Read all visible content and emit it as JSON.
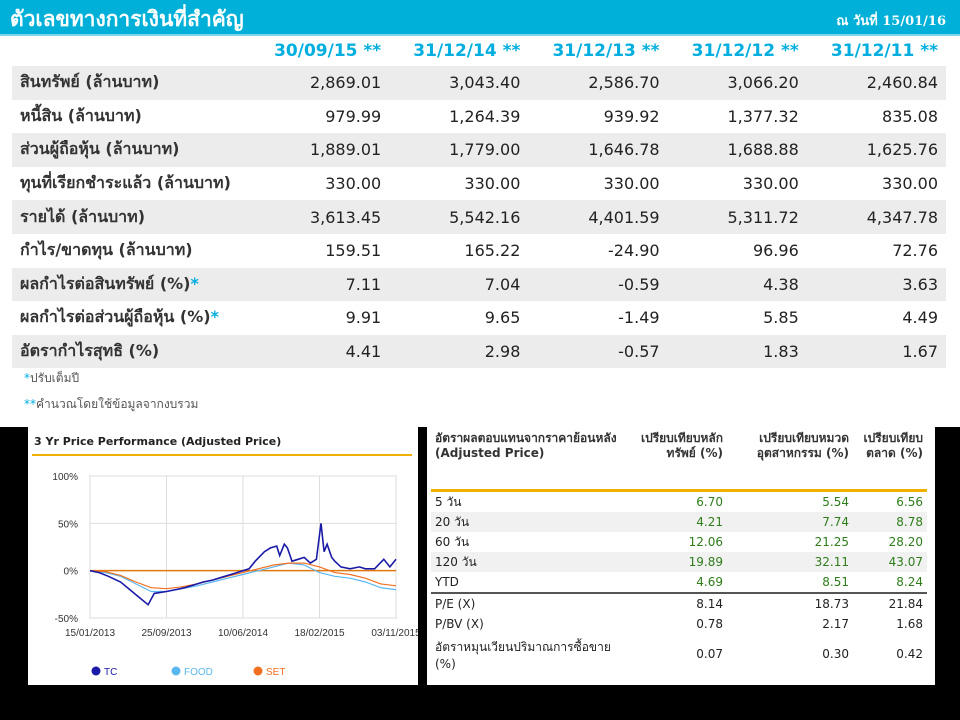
{
  "header": {
    "title": "ตัวเลขทางการเงินที่สำคัญ",
    "date": "ณ วันที่ 15/01/16"
  },
  "financials": {
    "columns": [
      "30/09/15 **",
      "31/12/14 **",
      "31/12/13 **",
      "31/12/12 **",
      "31/12/11 **"
    ],
    "rows": [
      {
        "label": "สินทรัพย์ (ล้านบาท)",
        "star": "",
        "values": [
          "2,869.01",
          "3,043.40",
          "2,586.70",
          "3,066.20",
          "2,460.84"
        ]
      },
      {
        "label": "หนี้สิน (ล้านบาท)",
        "star": "",
        "values": [
          "979.99",
          "1,264.39",
          "939.92",
          "1,377.32",
          "835.08"
        ]
      },
      {
        "label": "ส่วนผู้ถือหุ้น (ล้านบาท)",
        "star": "",
        "values": [
          "1,889.01",
          "1,779.00",
          "1,646.78",
          "1,688.88",
          "1,625.76"
        ]
      },
      {
        "label": "ทุนที่เรียกชำระแล้ว (ล้านบาท)",
        "star": "",
        "values": [
          "330.00",
          "330.00",
          "330.00",
          "330.00",
          "330.00"
        ]
      },
      {
        "label": "รายได้ (ล้านบาท)",
        "star": "",
        "values": [
          "3,613.45",
          "5,542.16",
          "4,401.59",
          "5,311.72",
          "4,347.78"
        ]
      },
      {
        "label": "กำไร/ขาดทุน (ล้านบาท)",
        "star": "",
        "values": [
          "159.51",
          "165.22",
          "-24.90",
          "96.96",
          "72.76"
        ]
      },
      {
        "label": "ผลกำไรต่อสินทรัพย์ (%)",
        "star": "*",
        "values": [
          "7.11",
          "7.04",
          "-0.59",
          "4.38",
          "3.63"
        ]
      },
      {
        "label": "ผลกำไรต่อส่วนผู้ถือหุ้น (%)",
        "star": "*",
        "values": [
          "9.91",
          "9.65",
          "-1.49",
          "5.85",
          "4.49"
        ]
      },
      {
        "label": "อัตรากำไรสุทธิ (%)",
        "star": "",
        "values": [
          "4.41",
          "2.98",
          "-0.57",
          "1.83",
          "1.67"
        ]
      }
    ],
    "notes": [
      {
        "mark": "*",
        "text": "ปรับเต็มปี"
      },
      {
        "mark": "**",
        "text": "คำนวณโดยใช้ข้อมูลจากงบรวม"
      }
    ]
  },
  "returns": {
    "headers": [
      "อัตราผลตอบแทนจากราคาย้อนหลัง (Adjusted Price)",
      "เปรียบเทียบหลักทรัพย์ (%)",
      "เปรียบเทียบหมวดอุตสาหกรรม (%)",
      "เปรียบเทียบตลาด (%)"
    ],
    "rows": [
      {
        "label": "5 วัน",
        "values": [
          "6.70",
          "5.54",
          "6.56"
        ]
      },
      {
        "label": "20 วัน",
        "values": [
          "4.21",
          "7.74",
          "8.78"
        ]
      },
      {
        "label": "60 วัน",
        "values": [
          "12.06",
          "21.25",
          "28.20"
        ]
      },
      {
        "label": "120 วัน",
        "values": [
          "19.89",
          "32.11",
          "43.07"
        ]
      },
      {
        "label": "YTD",
        "values": [
          "4.69",
          "8.51",
          "8.24"
        ]
      }
    ],
    "ratios": [
      {
        "label": "P/E (X)",
        "values": [
          "8.14",
          "18.73",
          "21.84"
        ]
      },
      {
        "label": "P/BV (X)",
        "values": [
          "0.78",
          "2.17",
          "1.68"
        ]
      },
      {
        "label": "อัตราหมุนเวียนปริมาณการซื้อขาย (%)",
        "values": [
          "0.07",
          "0.30",
          "0.42"
        ]
      }
    ]
  },
  "chart_data": {
    "type": "line",
    "title": "3 Yr Price Performance (Adjusted Price)",
    "ylim": [
      -50,
      100
    ],
    "yticks": [
      "100%",
      "50%",
      "0%",
      "-50%"
    ],
    "ytick_values": [
      100,
      50,
      0,
      -50
    ],
    "x_ticks": [
      "15/01/2013",
      "25/09/2013",
      "10/06/2014",
      "18/02/2015",
      "03/11/2015"
    ],
    "x_tick_positions": [
      0,
      0.25,
      0.5,
      0.75,
      1.0
    ],
    "baseline": 0,
    "colors": {
      "TC": "#1a1aa8",
      "FOOD": "#5ab8f0",
      "SET": "#f07020",
      "baseline": "#e07a10"
    },
    "series": [
      {
        "name": "TC",
        "x": [
          0,
          0.03,
          0.06,
          0.1,
          0.13,
          0.16,
          0.19,
          0.21,
          0.23,
          0.25,
          0.28,
          0.31,
          0.34,
          0.37,
          0.4,
          0.43,
          0.46,
          0.48,
          0.5,
          0.52,
          0.54,
          0.57,
          0.59,
          0.61,
          0.62,
          0.635,
          0.645,
          0.66,
          0.68,
          0.7,
          0.72,
          0.74,
          0.755,
          0.765,
          0.775,
          0.79,
          0.8,
          0.82,
          0.85,
          0.88,
          0.9,
          0.93,
          0.96,
          0.98,
          1.0
        ],
        "values": [
          0,
          -2,
          -6,
          -12,
          -20,
          -28,
          -36,
          -24,
          -23,
          -22,
          -20,
          -18,
          -15,
          -12,
          -10,
          -7,
          -4,
          -2,
          0,
          2,
          10,
          20,
          24,
          26,
          16,
          28,
          24,
          10,
          12,
          14,
          8,
          12,
          50,
          20,
          28,
          14,
          10,
          4,
          2,
          4,
          2,
          2,
          12,
          4,
          12
        ]
      },
      {
        "name": "FOOD",
        "x": [
          0,
          0.05,
          0.1,
          0.15,
          0.2,
          0.25,
          0.3,
          0.35,
          0.4,
          0.45,
          0.5,
          0.55,
          0.6,
          0.65,
          0.7,
          0.75,
          0.8,
          0.85,
          0.9,
          0.95,
          1.0
        ],
        "values": [
          0,
          -2,
          -6,
          -14,
          -22,
          -22,
          -19,
          -16,
          -12,
          -8,
          -4,
          0,
          4,
          8,
          6,
          -2,
          -6,
          -8,
          -12,
          -18,
          -20
        ]
      },
      {
        "name": "SET",
        "x": [
          0,
          0.05,
          0.1,
          0.15,
          0.2,
          0.25,
          0.3,
          0.35,
          0.4,
          0.45,
          0.5,
          0.55,
          0.6,
          0.65,
          0.7,
          0.75,
          0.8,
          0.85,
          0.9,
          0.95,
          1.0
        ],
        "values": [
          0,
          -1,
          -5,
          -12,
          -18,
          -19,
          -17,
          -14,
          -10,
          -6,
          -2,
          2,
          6,
          8,
          8,
          4,
          -2,
          -4,
          -8,
          -14,
          -16
        ]
      }
    ],
    "legend": [
      "TC",
      "FOOD",
      "SET"
    ]
  }
}
